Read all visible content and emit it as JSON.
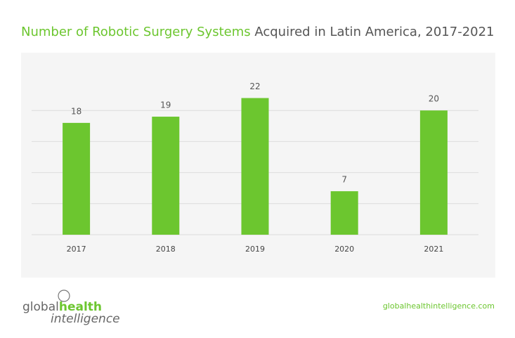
{
  "chart_data": {
    "type": "bar",
    "title": {
      "highlight": "Number of Robotic Surgery Systems",
      "rest": "Acquired in Latin America, 2017-2021"
    },
    "categories": [
      "2017",
      "2018",
      "2019",
      "2020",
      "2021"
    ],
    "values": [
      18,
      19,
      22,
      7,
      20
    ],
    "color": "#6cc62f",
    "ylim": [
      0,
      25
    ],
    "yticks": [
      0,
      5,
      10,
      15,
      20
    ],
    "grid": true
  },
  "footer": {
    "logo": {
      "part1": "global",
      "part2": "health",
      "part3": "intelligence"
    },
    "url": "globalhealthintelligence.com"
  }
}
